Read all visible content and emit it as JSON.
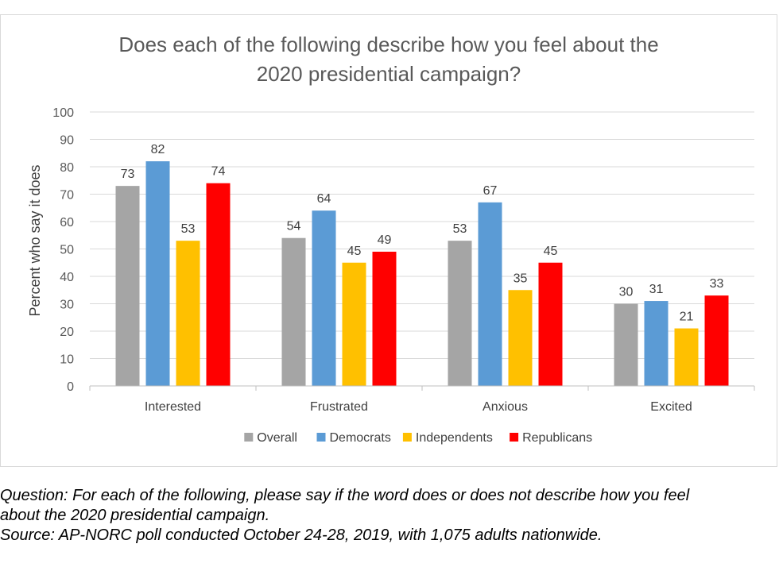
{
  "chart_data": {
    "type": "bar",
    "title_line1": "Does each of the following describe how you feel about the",
    "title_line2": "2020 presidential campaign?",
    "xlabel": "",
    "ylabel": "Percent who say it does",
    "ylim": [
      0,
      100
    ],
    "yticks": [
      0,
      10,
      20,
      30,
      40,
      50,
      60,
      70,
      80,
      90,
      100
    ],
    "grid": true,
    "legend_position": "bottom",
    "categories": [
      "Interested",
      "Frustrated",
      "Anxious",
      "Excited"
    ],
    "series": [
      {
        "name": "Overall",
        "color": "#A5A5A5",
        "values": [
          73,
          54,
          53,
          30
        ]
      },
      {
        "name": "Democrats",
        "color": "#5B9BD5",
        "values": [
          82,
          64,
          67,
          31
        ]
      },
      {
        "name": "Independents",
        "color": "#FFC000",
        "values": [
          53,
          45,
          35,
          21
        ]
      },
      {
        "name": "Republicans",
        "color": "#FF0000",
        "values": [
          74,
          49,
          45,
          33
        ]
      }
    ]
  },
  "notes": {
    "question": "Question:  For each of the following, please say if the word does or does not describe how you feel",
    "question_cont": "about the 2020 presidential campaign.",
    "source": "Source: AP-NORC poll conducted October 24-28, 2019, with 1,075 adults nationwide."
  }
}
